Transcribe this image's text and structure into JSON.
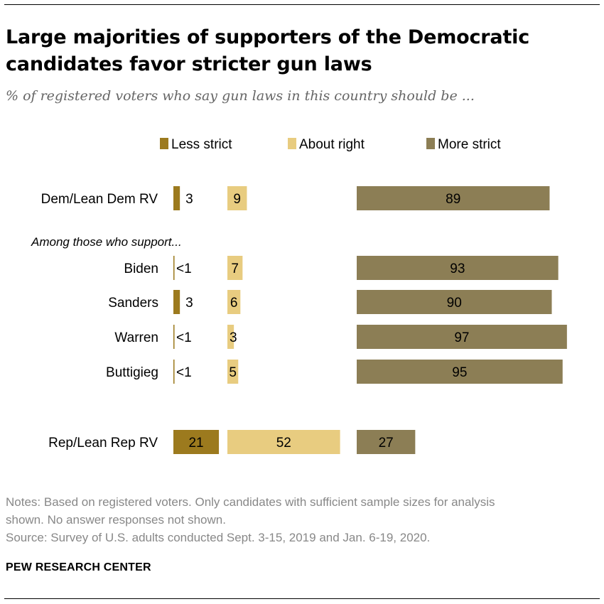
{
  "title": "Large majorities of supporters of the Democratic candidates favor stricter gun laws",
  "subtitle": "% of registered voters who say gun laws in this country should be ...",
  "colors": {
    "less": "#9c7a1e",
    "about": "#e8cc80",
    "more": "#8c7e55"
  },
  "chart_data": {
    "type": "bar",
    "orientation": "horizontal",
    "layout": "diverging-segments",
    "legend_position": "top",
    "categories": [
      "Dem/Lean Dem RV",
      "Biden",
      "Sanders",
      "Warren",
      "Buttigieg",
      "Rep/Lean Rep RV"
    ],
    "series": [
      {
        "name": "Less strict",
        "values": [
          3,
          0.5,
          3,
          0.5,
          0.5,
          21
        ],
        "labels": [
          "3",
          "<1",
          "3",
          "<1",
          "<1",
          "21"
        ]
      },
      {
        "name": "About right",
        "values": [
          9,
          7,
          6,
          3,
          5,
          52
        ],
        "labels": [
          "9",
          "7",
          "6",
          "3",
          "5",
          "52"
        ]
      },
      {
        "name": "More strict",
        "values": [
          89,
          93,
          90,
          97,
          95,
          27
        ],
        "labels": [
          "89",
          "93",
          "90",
          "97",
          "95",
          "27"
        ]
      }
    ],
    "group_label": "Among those who support...",
    "indented_categories": [
      "Biden",
      "Sanders",
      "Warren",
      "Buttigieg"
    ]
  },
  "notes": [
    "Notes: Based on registered voters. Only candidates with sufficient sample sizes for analysis",
    "shown. No answer responses not shown.",
    "Source: Survey of U.S. adults conducted Sept. 3-15, 2019 and Jan. 6-19, 2020."
  ],
  "brand": "PEW RESEARCH CENTER"
}
